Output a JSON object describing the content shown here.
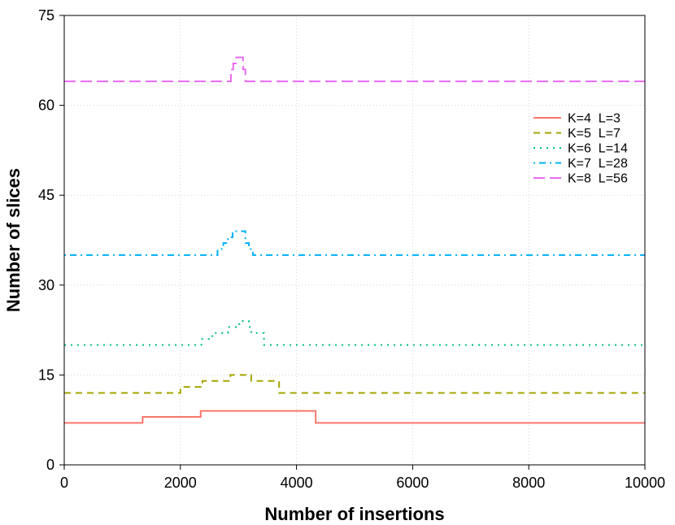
{
  "chart_data": {
    "type": "line",
    "xlabel": "Number of insertions",
    "ylabel": "Number of slices",
    "xlim": [
      0,
      10000
    ],
    "ylim": [
      0,
      75
    ],
    "xticks": [
      0,
      2000,
      4000,
      6000,
      8000,
      10000
    ],
    "yticks": [
      0,
      15,
      30,
      45,
      60,
      75
    ],
    "xtick_labels": [
      "0",
      "2000",
      "4000",
      "6000",
      "8000",
      "10000"
    ],
    "ytick_labels": [
      "0",
      "15",
      "30",
      "45",
      "60",
      "75"
    ],
    "grid": true,
    "legend_position": "right",
    "step": true,
    "series": [
      {
        "name": "K=4  L=3",
        "color": "#F8766D",
        "dash": "solid",
        "x": [
          0,
          1350,
          2350,
          4330,
          10000
        ],
        "y": [
          7,
          8,
          9,
          7,
          7
        ]
      },
      {
        "name": "K=5  L=7",
        "color": "#A3A500",
        "dash": "dashed",
        "x": [
          0,
          2000,
          2380,
          2860,
          3220,
          3700,
          10000
        ],
        "y": [
          12,
          13,
          14,
          15,
          14,
          12,
          12
        ]
      },
      {
        "name": "K=6  L=14",
        "color": "#00BF7D",
        "dash": "dotted",
        "x": [
          0,
          2360,
          2550,
          2820,
          2960,
          3040,
          3180,
          3220,
          3440,
          10000
        ],
        "y": [
          20,
          21,
          22,
          23,
          23.5,
          24,
          23,
          22,
          20,
          20
        ],
        "dash_detail": "dotted"
      },
      {
        "name": "K=7  L=28",
        "color": "#00B0F6",
        "dash": "dotdash",
        "x": [
          0,
          2640,
          2740,
          2820,
          2900,
          3120,
          3180,
          3250,
          10000
        ],
        "y": [
          35,
          36,
          37,
          38,
          39,
          37,
          36,
          35,
          35
        ]
      },
      {
        "name": "K=8  L=56",
        "color": "#E76BF3",
        "dash": "longdash",
        "x": [
          0,
          2870,
          2910,
          2960,
          3080,
          3120,
          10000
        ],
        "y": [
          64,
          66,
          67,
          68,
          66,
          64,
          64
        ]
      }
    ]
  }
}
